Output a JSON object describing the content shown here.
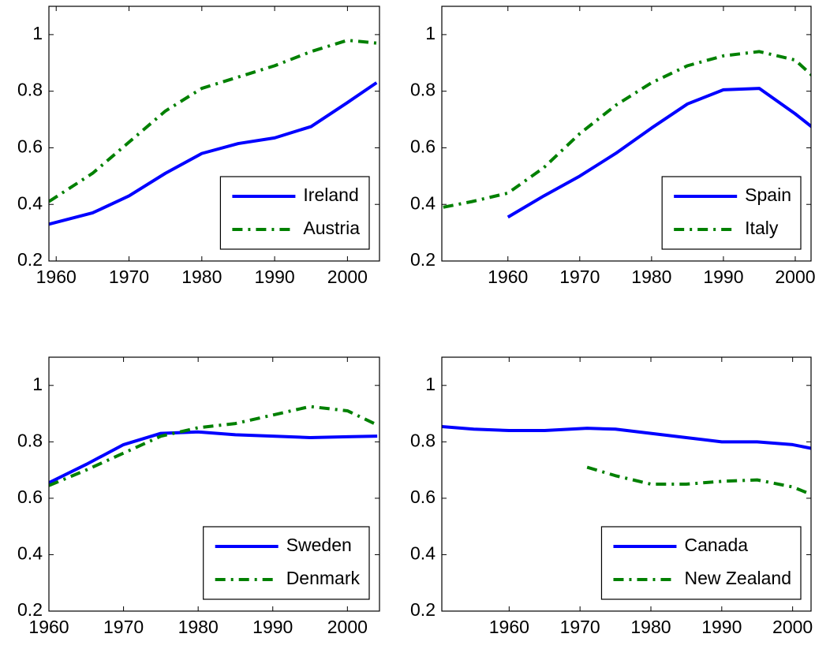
{
  "chart_data": [
    {
      "type": "line",
      "x": [
        1959,
        1965,
        1970,
        1975,
        1980,
        1985,
        1990,
        1995,
        2000,
        2004
      ],
      "series": [
        {
          "name": "Ireland",
          "color": "#0000ff",
          "linestyle": "solid",
          "values": [
            0.33,
            0.37,
            0.43,
            0.51,
            0.58,
            0.615,
            0.635,
            0.675,
            0.76,
            0.83
          ]
        },
        {
          "name": "Austria",
          "color": "#008000",
          "linestyle": "dashdot",
          "values": [
            0.41,
            0.51,
            0.62,
            0.73,
            0.81,
            0.85,
            0.89,
            0.94,
            0.98,
            0.97
          ]
        }
      ],
      "xlim": [
        1959,
        2004.4
      ],
      "xticks": [
        1960,
        1970,
        1980,
        1990,
        2000
      ],
      "ylim": [
        0.2,
        1.1
      ],
      "yticks": [
        0.2,
        0.4,
        0.6,
        0.8,
        1
      ],
      "legend": "lower right"
    },
    {
      "type": "line",
      "x": [
        1951,
        1955,
        1960,
        1965,
        1970,
        1975,
        1980,
        1985,
        1990,
        1995,
        2000,
        2003
      ],
      "series": [
        {
          "name": "Spain",
          "color": "#0000ff",
          "linestyle": "solid",
          "values": [
            null,
            null,
            0.355,
            0.43,
            0.5,
            0.58,
            0.67,
            0.755,
            0.805,
            0.81,
            0.72,
            0.66
          ]
        },
        {
          "name": "Italy",
          "color": "#008000",
          "linestyle": "dashdot",
          "values": [
            0.39,
            0.41,
            0.44,
            0.53,
            0.65,
            0.75,
            0.83,
            0.89,
            0.925,
            0.94,
            0.91,
            0.84
          ]
        }
      ],
      "xlim": [
        1950.8,
        2002.2
      ],
      "xticks": [
        1960,
        1970,
        1980,
        1990,
        2000
      ],
      "ylim": [
        0.2,
        1.1
      ],
      "yticks": [
        0.2,
        0.4,
        0.6,
        0.8,
        1
      ],
      "legend": "lower right"
    },
    {
      "type": "line",
      "x": [
        1960,
        1965,
        1970,
        1975,
        1980,
        1985,
        1990,
        1995,
        2000,
        2004
      ],
      "series": [
        {
          "name": "Sweden",
          "color": "#0000ff",
          "linestyle": "solid",
          "values": [
            0.655,
            0.72,
            0.79,
            0.83,
            0.835,
            0.825,
            0.82,
            0.815,
            0.818,
            0.82
          ]
        },
        {
          "name": "Denmark",
          "color": "#008000",
          "linestyle": "dashdot",
          "values": [
            0.645,
            0.7,
            0.76,
            0.82,
            0.85,
            0.865,
            0.895,
            0.925,
            0.91,
            0.86
          ]
        }
      ],
      "xlim": [
        1960,
        2004.3
      ],
      "xticks": [
        1960,
        1970,
        1980,
        1990,
        2000
      ],
      "ylim": [
        0.2,
        1.1
      ],
      "yticks": [
        0.2,
        0.4,
        0.6,
        0.8,
        1
      ],
      "legend": "lower right"
    },
    {
      "type": "line",
      "x": [
        1950,
        1955,
        1960,
        1965,
        1971,
        1975,
        1980,
        1985,
        1990,
        1995,
        2000,
        2003
      ],
      "series": [
        {
          "name": "Canada",
          "color": "#0000ff",
          "linestyle": "solid",
          "values": [
            0.855,
            0.845,
            0.84,
            0.84,
            0.848,
            0.845,
            0.83,
            0.815,
            0.8,
            0.8,
            0.79,
            0.775
          ]
        },
        {
          "name": "New Zealand",
          "color": "#008000",
          "linestyle": "dashdot",
          "values": [
            null,
            null,
            null,
            null,
            0.71,
            0.68,
            0.65,
            0.65,
            0.66,
            0.665,
            0.64,
            0.61
          ]
        }
      ],
      "xlim": [
        1950.5,
        2002.6
      ],
      "xticks": [
        1960,
        1970,
        1980,
        1990,
        2000
      ],
      "ylim": [
        0.2,
        1.1
      ],
      "yticks": [
        0.2,
        0.4,
        0.6,
        0.8,
        1
      ],
      "legend": "lower right"
    }
  ]
}
